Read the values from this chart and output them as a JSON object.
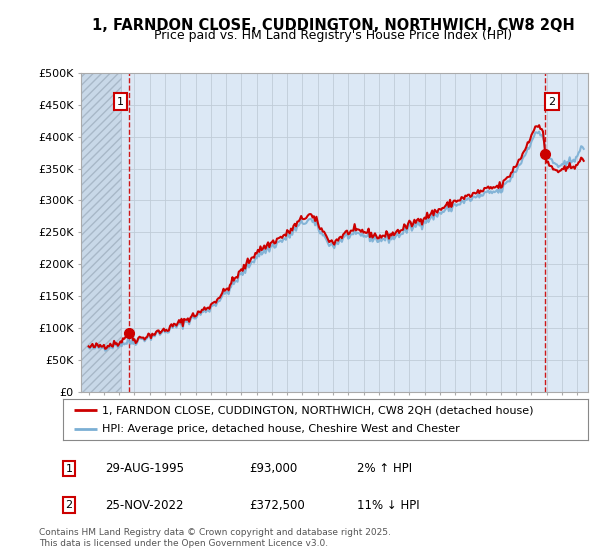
{
  "title": "1, FARNDON CLOSE, CUDDINGTON, NORTHWICH, CW8 2QH",
  "subtitle": "Price paid vs. HM Land Registry's House Price Index (HPI)",
  "legend_label1": "1, FARNDON CLOSE, CUDDINGTON, NORTHWICH, CW8 2QH (detached house)",
  "legend_label2": "HPI: Average price, detached house, Cheshire West and Chester",
  "annotation1_label": "1",
  "annotation1_date": "29-AUG-1995",
  "annotation1_price": "£93,000",
  "annotation1_pct": "2% ↑ HPI",
  "annotation2_label": "2",
  "annotation2_date": "25-NOV-2022",
  "annotation2_price": "£372,500",
  "annotation2_pct": "11% ↓ HPI",
  "footer": "Contains HM Land Registry data © Crown copyright and database right 2025.\nThis data is licensed under the Open Government Licence v3.0.",
  "price_color": "#cc0000",
  "hpi_color": "#7bafd4",
  "bg_color": "#dce8f5",
  "ylim": [
    0,
    500000
  ],
  "yticks": [
    0,
    50000,
    100000,
    150000,
    200000,
    250000,
    300000,
    350000,
    400000,
    450000,
    500000
  ],
  "xmin": 1992.5,
  "xmax": 2025.7,
  "hatch_xmin": 1992.5,
  "hatch_xmax": 1995.1,
  "sale1_x": 1995.66,
  "sale1_y": 93000,
  "sale2_x": 2022.9,
  "sale2_y": 372500
}
